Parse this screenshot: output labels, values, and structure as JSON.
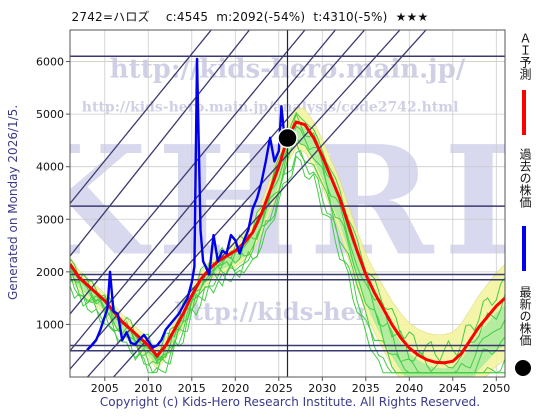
{
  "header": {
    "code_name": "2742=ハロズ",
    "current": "c:4545",
    "min_stat": "m:2092(-54%)",
    "target_stat": "t:4310(-5%)",
    "rating": "★★★"
  },
  "side_text": "Generated on Monday 2026/1/5.",
  "copyright": "Copyright (c) Kids-Hero Research Institute. All Rights Reserved.",
  "watermark": {
    "url1": "http://kids-hero.main.jp/",
    "url2": "http://kids-hero.main.jp/analysis/code2742.html",
    "big": "KHRI",
    "url3": "http://kids-hero"
  },
  "legend": {
    "ai_forecast": "ＡＩ予測",
    "past_price": "過去の株価",
    "latest_price": "最新の株価"
  },
  "colors": {
    "ai_forecast": "#ff0000",
    "past_price": "#0000ee",
    "latest_price": "#000000",
    "green_band": "#44cc44",
    "yellow_band": "#f5f5a0",
    "trend_lines": "#3a3a70"
  },
  "chart_data": {
    "type": "line",
    "x_range": [
      2001,
      2051
    ],
    "y_range": [
      0,
      6600
    ],
    "x_ticks": [
      "2005",
      "2010",
      "2015",
      "2020",
      "2025",
      "2030",
      "2035",
      "2040",
      "2045",
      "2050"
    ],
    "y_ticks": [
      "1000",
      "2000",
      "3000",
      "4000",
      "5000",
      "6000"
    ],
    "grid": true,
    "horizontal_levels": [
      6100,
      3250,
      1950,
      1850,
      600,
      500
    ],
    "latest_point": {
      "x": 2026.0,
      "y": 4545
    },
    "series": [
      {
        "x": [
          2003.0,
          2003.5,
          2004.0,
          2004.5,
          2005.0,
          2005.3,
          2005.6,
          2006.0,
          2006.5,
          2007.0,
          2007.5,
          2008.0,
          2008.5,
          2009.0,
          2009.5,
          2010.0,
          2010.5,
          2011.0,
          2011.5,
          2012.0,
          2012.5,
          2013.0,
          2013.5,
          2014.0,
          2014.5,
          2015.0,
          2015.3,
          2015.6,
          2016.0,
          2016.3,
          2016.6,
          2017.0,
          2017.5,
          2018.0,
          2018.5,
          2019.0,
          2019.5,
          2020.0,
          2020.5,
          2021.0,
          2021.5,
          2022.0,
          2022.5,
          2023.0,
          2023.5,
          2024.0,
          2024.5,
          2025.0,
          2025.3,
          2025.6,
          2026.0
        ],
        "values": [
          520,
          600,
          700,
          900,
          1150,
          1300,
          2000,
          1250,
          1200,
          700,
          850,
          650,
          620,
          720,
          800,
          680,
          560,
          600,
          700,
          900,
          1000,
          1100,
          1200,
          1350,
          1500,
          1800,
          2100,
          6050,
          2800,
          2200,
          2100,
          1950,
          2700,
          2200,
          2400,
          2350,
          2700,
          2600,
          2350,
          2600,
          2800,
          3200,
          3400,
          3700,
          4100,
          4550,
          4100,
          4300,
          5150,
          4650,
          4545
        ]
      },
      {
        "x": [
          2001.0,
          2002.0,
          2003.0,
          2004.0,
          2005.0,
          2006.0,
          2007.0,
          2008.0,
          2009.0,
          2010.0,
          2011.0,
          2012.0,
          2013.0,
          2014.0,
          2015.0,
          2016.0,
          2017.0,
          2018.0,
          2019.0,
          2020.0,
          2021.0,
          2022.0,
          2023.0,
          2024.0,
          2025.0,
          2026.0,
          2027.0,
          2028.0,
          2029.0,
          2030.0,
          2031.0,
          2032.0,
          2033.0,
          2034.0,
          2035.0,
          2036.0,
          2037.0,
          2038.0,
          2039.0,
          2040.0,
          2041.0,
          2042.0,
          2043.0,
          2044.0,
          2045.0,
          2046.0,
          2047.0,
          2048.0,
          2049.0,
          2050.0,
          2051.0
        ],
        "values": [
          2150,
          1900,
          1750,
          1600,
          1450,
          1250,
          1050,
          900,
          750,
          600,
          400,
          600,
          900,
          1200,
          1550,
          1850,
          2050,
          2200,
          2300,
          2400,
          2550,
          2750,
          3100,
          3550,
          4000,
          4550,
          4850,
          4800,
          4550,
          4200,
          3800,
          3400,
          2900,
          2400,
          1950,
          1600,
          1300,
          1000,
          750,
          550,
          420,
          330,
          280,
          270,
          300,
          450,
          700,
          950,
          1150,
          1350,
          1500
        ]
      }
    ]
  }
}
